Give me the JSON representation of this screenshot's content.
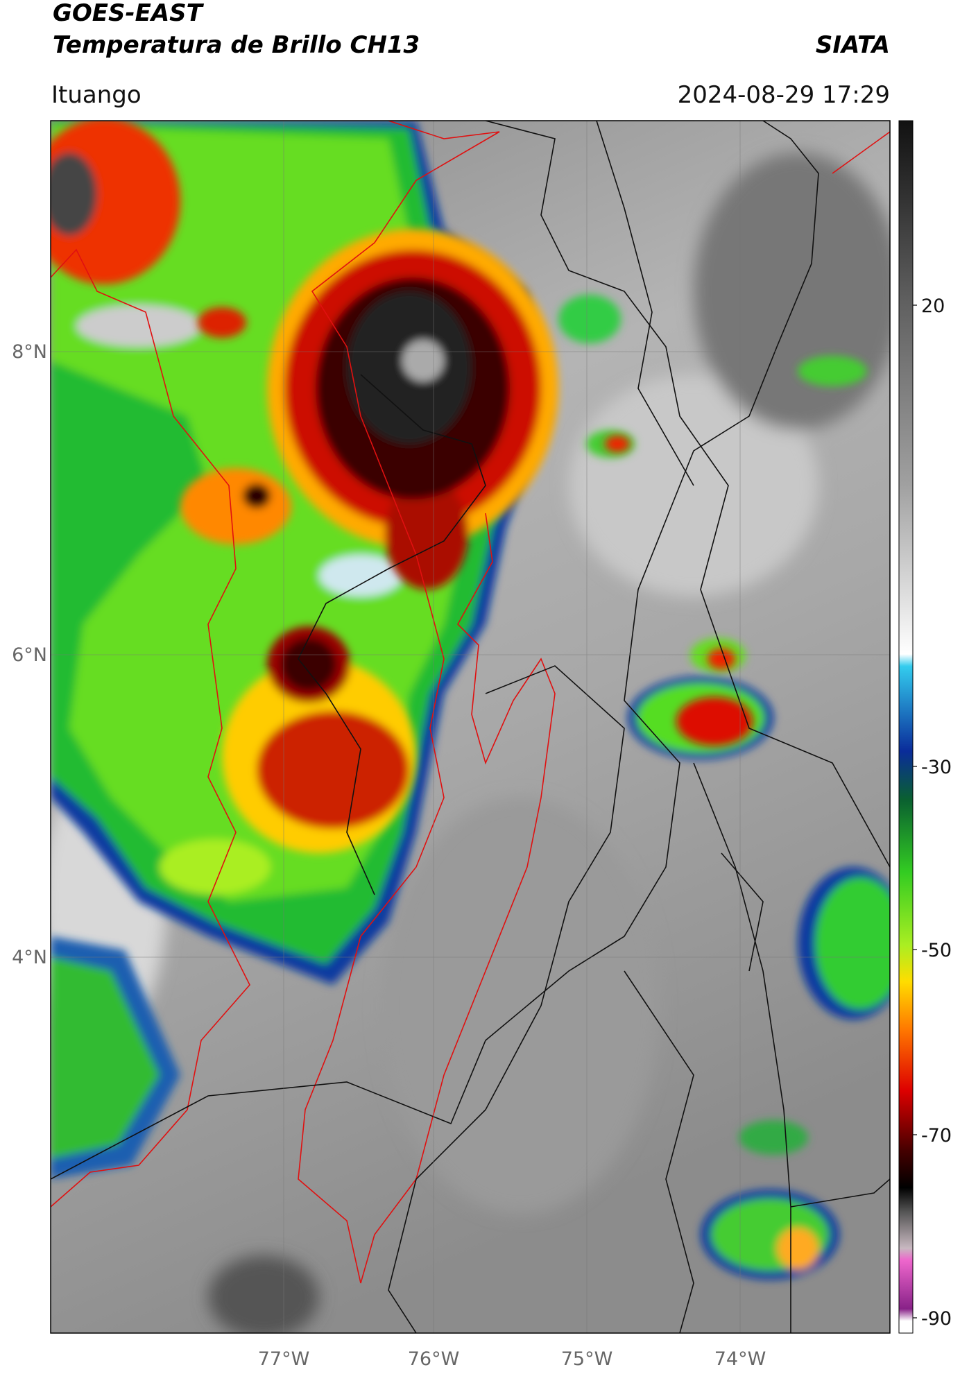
{
  "header": {
    "source": "GOES-EAST",
    "product": "Temperatura de Brillo CH13",
    "agency": "SIATA",
    "location": "Ituango",
    "datetime": "2024-08-29 17:29"
  },
  "map": {
    "lat_labels": [
      "8°N",
      "6°N",
      "4°N"
    ],
    "lon_labels": [
      "77°W",
      "76°W",
      "75°W",
      "74°W"
    ]
  },
  "colorbar": {
    "ticks": [
      "20",
      "-30",
      "-50",
      "-70",
      "-90"
    ]
  }
}
